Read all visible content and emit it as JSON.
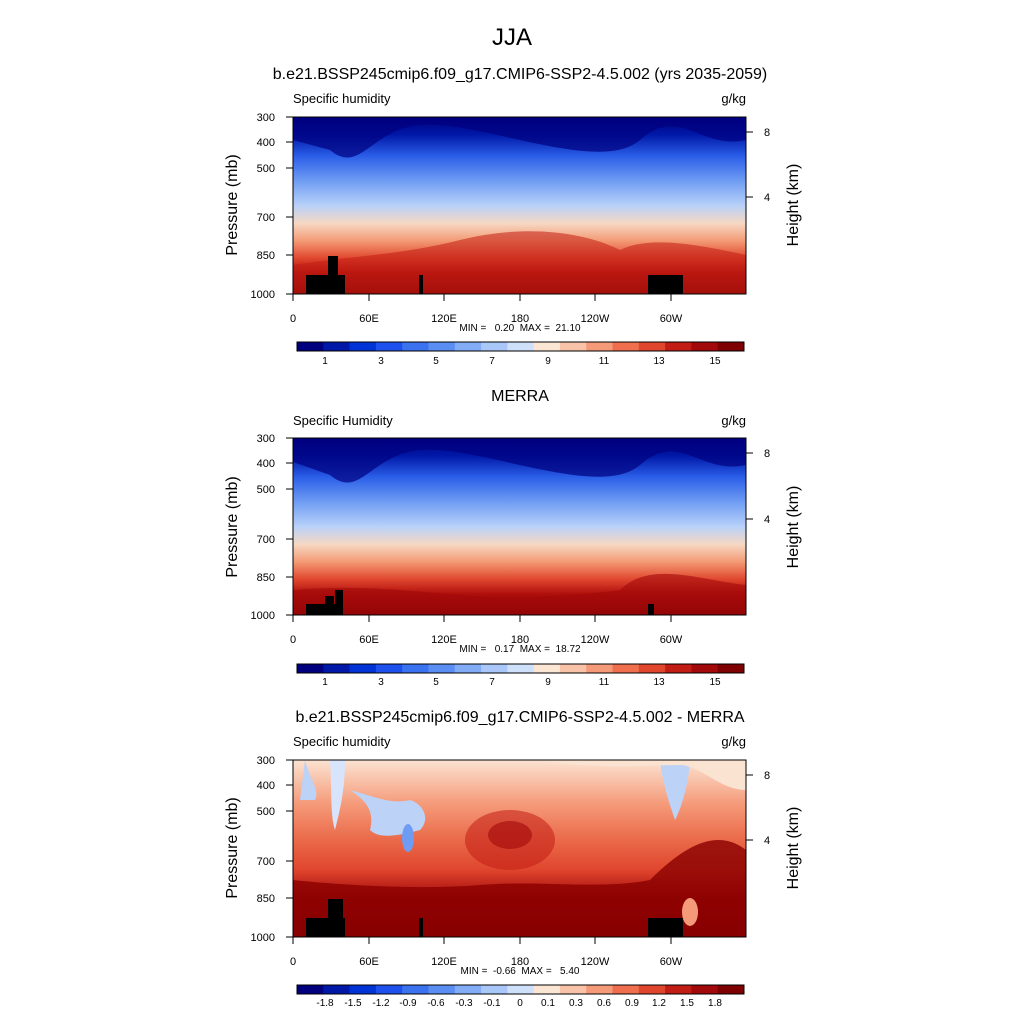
{
  "figure": {
    "title": "JJA"
  },
  "chart_data": [
    {
      "type": "heatmap",
      "title": "b.e21.BSSP245cmip6.f09_g17.CMIP6-SSP2-4.5.002 (yrs 2035-2059)",
      "left_label": "Specific humidity",
      "units": "g/kg",
      "ylabel": "Pressure (mb)",
      "ylabel_right": "Height (km)",
      "x_ticks": [
        "0",
        "60E",
        "120E",
        "180",
        "120W",
        "60W"
      ],
      "y_ticks": [
        "300",
        "400",
        "500",
        "700",
        "850",
        "1000"
      ],
      "y_ticks_right": [
        "8",
        "4"
      ],
      "stats": "MIN =   0.20  MAX =  21.10",
      "min": 0.2,
      "max": 21.1,
      "colorbar_labels": [
        "1",
        "3",
        "5",
        "7",
        "9",
        "11",
        "13",
        "15"
      ],
      "colorbar_levels": 16,
      "colors": [
        "#00007f",
        "#0018a8",
        "#0033d6",
        "#1e50ee",
        "#3a72f0",
        "#5b8ef2",
        "#82acf5",
        "#a9c7f8",
        "#cfe0fa",
        "#fbe5d3",
        "#f8c3a8",
        "#f59a79",
        "#ef6e4e",
        "#e0462e",
        "#c21d14",
        "#a2090a",
        "#7f0000"
      ]
    },
    {
      "type": "heatmap",
      "title": "MERRA",
      "left_label": "Specific Humidity",
      "units": "g/kg",
      "ylabel": "Pressure (mb)",
      "ylabel_right": "Height (km)",
      "x_ticks": [
        "0",
        "60E",
        "120E",
        "180",
        "120W",
        "60W"
      ],
      "y_ticks": [
        "300",
        "400",
        "500",
        "700",
        "850",
        "1000"
      ],
      "y_ticks_right": [
        "8",
        "4"
      ],
      "stats": "MIN =   0.17  MAX =  18.72",
      "min": 0.17,
      "max": 18.72,
      "colorbar_labels": [
        "1",
        "3",
        "5",
        "7",
        "9",
        "11",
        "13",
        "15"
      ],
      "colorbar_levels": 16
    },
    {
      "type": "heatmap",
      "title": "b.e21.BSSP245cmip6.f09_g17.CMIP6-SSP2-4.5.002 - MERRA",
      "left_label": "Specific humidity",
      "units": "g/kg",
      "ylabel": "Pressure (mb)",
      "ylabel_right": "Height (km)",
      "x_ticks": [
        "0",
        "60E",
        "120E",
        "180",
        "120W",
        "60W"
      ],
      "y_ticks": [
        "300",
        "400",
        "500",
        "700",
        "850",
        "1000"
      ],
      "y_ticks_right": [
        "8",
        "4"
      ],
      "stats": "MIN =  -0.66  MAX =   5.40",
      "min": -0.66,
      "max": 5.4,
      "colorbar_labels": [
        "-1.8",
        "-1.5",
        "-1.2",
        "-0.9",
        "-0.6",
        "-0.3",
        "-0.1",
        "0",
        "0.1",
        "0.3",
        "0.6",
        "0.9",
        "1.2",
        "1.5",
        "1.8"
      ],
      "colorbar_levels": 16
    }
  ]
}
